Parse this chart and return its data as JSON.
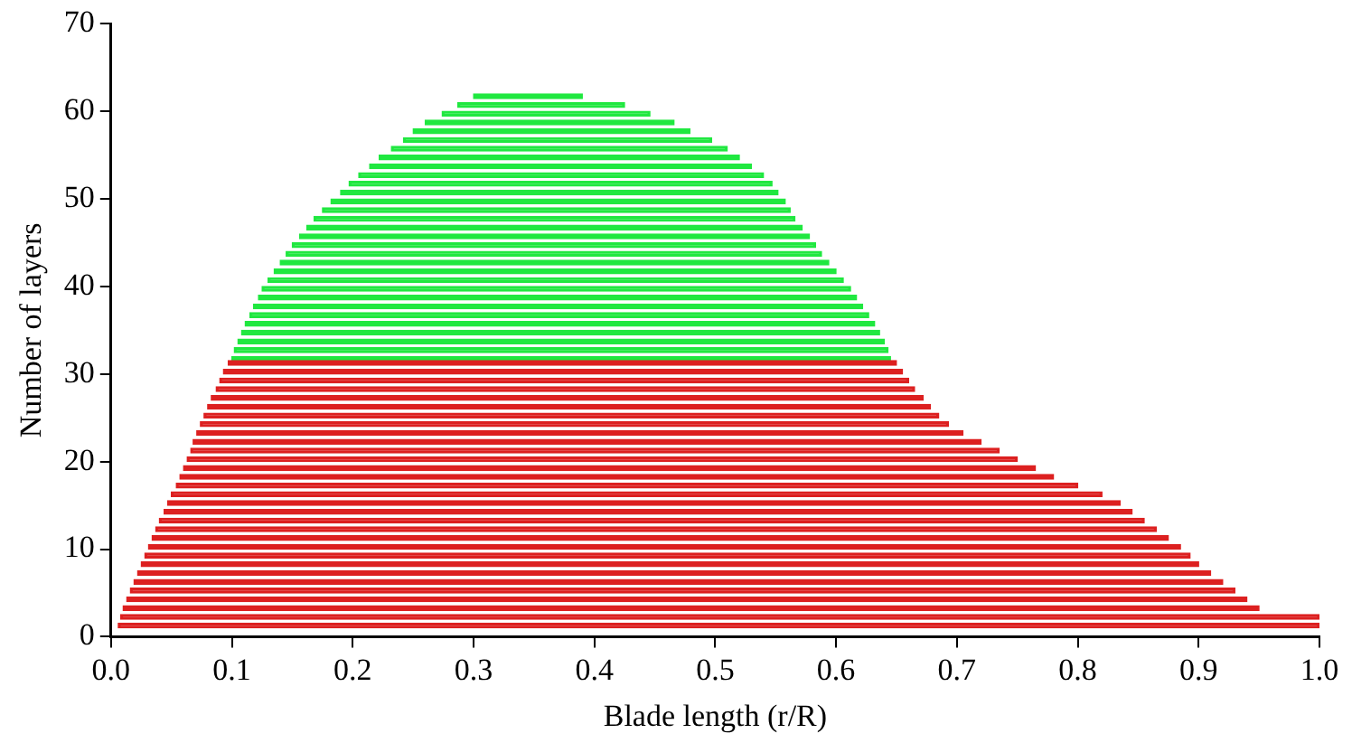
{
  "chart_data": {
    "type": "bar",
    "orientation": "horizontal",
    "xlabel": "Blade length (r/R)",
    "ylabel": "Number of layers",
    "xlim": [
      0,
      1
    ],
    "xticks": [
      {
        "value": 0,
        "label": "0.0"
      },
      0.1,
      0.2,
      0.3,
      0.4,
      0.5,
      0.6,
      0.7,
      0.8,
      0.9,
      {
        "value": 1,
        "label": "1.0"
      }
    ],
    "ylim": [
      0,
      70
    ],
    "yticks": [
      0,
      10,
      20,
      30,
      40,
      50,
      60,
      70
    ],
    "grid": false,
    "legend": false,
    "series": [
      {
        "color": "#dd2020",
        "x": [
          1,
          2,
          3,
          4,
          5,
          6,
          7,
          8,
          9,
          10,
          11,
          12,
          13,
          14,
          15,
          16,
          17,
          18,
          19,
          20,
          21,
          22,
          23,
          24,
          25,
          26,
          27,
          28,
          29,
          30,
          31
        ],
        "base": [
          0.006,
          0.008,
          0.01,
          0.013,
          0.016,
          0.019,
          0.022,
          0.025,
          0.028,
          0.031,
          0.034,
          0.037,
          0.04,
          0.044,
          0.047,
          0.05,
          0.054,
          0.057,
          0.06,
          0.063,
          0.066,
          0.068,
          0.071,
          0.074,
          0.077,
          0.08,
          0.083,
          0.087,
          0.09,
          0.093,
          0.097
        ],
        "values": [
          0.994,
          0.992,
          0.94,
          0.927,
          0.914,
          0.901,
          0.888,
          0.875,
          0.865,
          0.854,
          0.841,
          0.828,
          0.815,
          0.801,
          0.788,
          0.77,
          0.746,
          0.723,
          0.705,
          0.687,
          0.669,
          0.652,
          0.634,
          0.619,
          0.608,
          0.598,
          0.589,
          0.578,
          0.57,
          0.562,
          0.553
        ]
      },
      {
        "color": "#20e840",
        "x": [
          32,
          33,
          34,
          35,
          36,
          37,
          38,
          39,
          40,
          41,
          42,
          43,
          44,
          45,
          46,
          47,
          48,
          49,
          50,
          51,
          52,
          53,
          54,
          55,
          56,
          57,
          58,
          59,
          60,
          61,
          62
        ],
        "base": [
          0.1,
          0.102,
          0.105,
          0.108,
          0.111,
          0.115,
          0.118,
          0.122,
          0.125,
          0.13,
          0.135,
          0.14,
          0.145,
          0.15,
          0.156,
          0.162,
          0.168,
          0.175,
          0.182,
          0.19,
          0.197,
          0.205,
          0.214,
          0.222,
          0.232,
          0.242,
          0.25,
          0.26,
          0.274,
          0.287,
          0.3
        ],
        "values": [
          0.545,
          0.541,
          0.535,
          0.528,
          0.521,
          0.512,
          0.504,
          0.495,
          0.487,
          0.476,
          0.465,
          0.454,
          0.443,
          0.433,
          0.422,
          0.41,
          0.398,
          0.387,
          0.376,
          0.362,
          0.35,
          0.335,
          0.316,
          0.298,
          0.278,
          0.255,
          0.229,
          0.206,
          0.172,
          0.138,
          0.09
        ]
      }
    ]
  }
}
